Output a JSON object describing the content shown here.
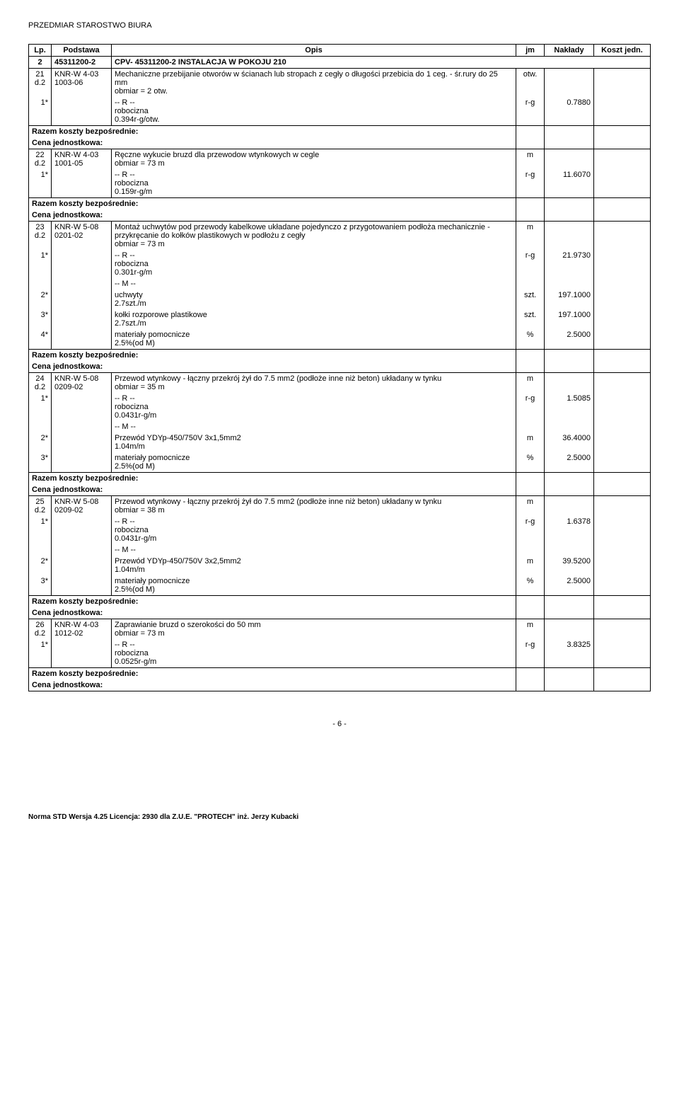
{
  "docTitle": "PRZEDMIAR  STAROSTWO  BIURA",
  "headers": {
    "lp": "Lp.",
    "podstawa": "Podstawa",
    "opis": "Opis",
    "jm": "jm",
    "naklady": "Nakłady",
    "koszt": "Koszt jedn."
  },
  "section": {
    "num": "2",
    "code": "45311200-2",
    "title": "CPV- 45311200-2 INSTALACJA W POKOJU  210"
  },
  "rows": [
    {
      "type": "item",
      "lp": "21",
      "lp2": "d.2",
      "pod": "KNR-W 4-03\n1003-06",
      "opis": "Mechaniczne przebijanie otworów w ścianach lub stropach z cegły o długości przebicia do 1 ceg. - śr.rury do 25 mm\nobmiar  = 2 otw.",
      "jm": "otw."
    },
    {
      "type": "r",
      "star": "1*",
      "opis": "-- R --\nrobocizna\n0.394r-g/otw.",
      "jm": "r-g",
      "nak": "0.7880"
    },
    {
      "type": "razem"
    },
    {
      "type": "item",
      "lp": "22",
      "lp2": "d.2",
      "pod": "KNR-W 4-03\n1001-05",
      "opis": "Ręczne wykucie bruzd dla przewodow wtynkowych w cegle\nobmiar  = 73 m",
      "jm": "m"
    },
    {
      "type": "r",
      "star": "1*",
      "opis": "-- R --\nrobocizna\n0.159r-g/m",
      "jm": "r-g",
      "nak": "11.6070"
    },
    {
      "type": "razem"
    },
    {
      "type": "item",
      "lp": "23",
      "lp2": "d.2",
      "pod": "KNR-W 5-08\n0201-02",
      "opis": "Montaż uchwytów pod przewody kabelkowe układane pojedynczo z przygotowaniem podłoża mechanicznie - przykręcanie do kołków plastikowych w podłożu z cegły\nobmiar  = 73 m",
      "jm": "m"
    },
    {
      "type": "r",
      "star": "1*",
      "opis": "-- R --\nrobocizna\n0.301r-g/m",
      "jm": "r-g",
      "nak": "21.9730"
    },
    {
      "type": "m-head",
      "opis": "-- M --"
    },
    {
      "type": "m",
      "star": "2*",
      "opis": "uchwyty\n2.7szt./m",
      "jm": "szt.",
      "nak": "197.1000"
    },
    {
      "type": "m",
      "star": "3*",
      "opis": "kołki rozporowe plastikowe\n2.7szt./m",
      "jm": "szt.",
      "nak": "197.1000"
    },
    {
      "type": "m",
      "star": "4*",
      "opis": "materiały pomocnicze\n2.5%(od M)",
      "jm": "%",
      "nak": "2.5000"
    },
    {
      "type": "razem"
    },
    {
      "type": "item",
      "lp": "24",
      "lp2": "d.2",
      "pod": "KNR-W 5-08\n0209-02",
      "opis": "Przewod wtynkowy - łączny przekrój żył do 7.5 mm2 (podłoże inne niż beton) układany w tynku\nobmiar  = 35 m",
      "jm": "m"
    },
    {
      "type": "r",
      "star": "1*",
      "opis": "-- R --\nrobocizna\n0.0431r-g/m",
      "jm": "r-g",
      "nak": "1.5085"
    },
    {
      "type": "m-head",
      "opis": "-- M --"
    },
    {
      "type": "m",
      "star": "2*",
      "opis": "Przewód YDYp-450/750V 3x1,5mm2\n1.04m/m",
      "jm": "m",
      "nak": "36.4000"
    },
    {
      "type": "m",
      "star": "3*",
      "opis": "materiały pomocnicze\n2.5%(od M)",
      "jm": "%",
      "nak": "2.5000"
    },
    {
      "type": "razem"
    },
    {
      "type": "item",
      "lp": "25",
      "lp2": "d.2",
      "pod": "KNR-W 5-08\n0209-02",
      "opis": "Przewod wtynkowy - łączny przekrój żył do 7.5 mm2 (podłoże inne niż beton) układany w tynku\nobmiar  = 38 m",
      "jm": "m"
    },
    {
      "type": "r",
      "star": "1*",
      "opis": "-- R --\nrobocizna\n0.0431r-g/m",
      "jm": "r-g",
      "nak": "1.6378"
    },
    {
      "type": "m-head",
      "opis": "-- M --"
    },
    {
      "type": "m",
      "star": "2*",
      "opis": "Przewód YDYp-450/750V 3x2,5mm2\n1.04m/m",
      "jm": "m",
      "nak": "39.5200"
    },
    {
      "type": "m",
      "star": "3*",
      "opis": "materiały pomocnicze\n2.5%(od M)",
      "jm": "%",
      "nak": "2.5000"
    },
    {
      "type": "razem"
    },
    {
      "type": "item",
      "lp": "26",
      "lp2": "d.2",
      "pod": "KNR-W 4-03\n1012-02",
      "opis": "Zaprawianie bruzd o szerokości do 50 mm\nobmiar  = 73 m",
      "jm": "m"
    },
    {
      "type": "r",
      "star": "1*",
      "opis": "-- R --\nrobocizna\n0.0525r-g/m",
      "jm": "r-g",
      "nak": "3.8325"
    },
    {
      "type": "razem"
    }
  ],
  "labels": {
    "razem": "Razem koszty bezpośrednie:",
    "cena": "Cena jednostkowa:"
  },
  "pageNum": "- 6 -",
  "footer": "Norma STD Wersja 4.25 Licencja: 2930 dla Z.U.E. \"PROTECH\" inż. Jerzy Kubacki"
}
